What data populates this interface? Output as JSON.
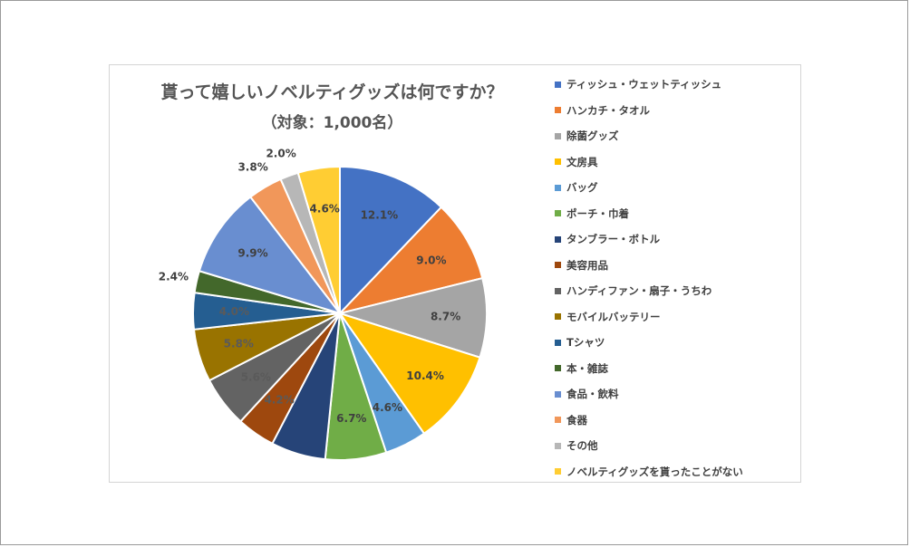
{
  "chart_data": {
    "type": "pie",
    "title": "貰って嬉しいノベルティグッズは何ですか？",
    "subtitle": "（対象：1,000名）",
    "legend_position": "right",
    "slices": [
      {
        "label": "ティッシュ・ウェットティッシュ",
        "value": 12.1,
        "value_label": "12.1%",
        "color": "#4472C4"
      },
      {
        "label": "ハンカチ・タオル",
        "value": 9.0,
        "value_label": "9.0%",
        "color": "#ED7D31"
      },
      {
        "label": "除菌グッズ",
        "value": 8.7,
        "value_label": "8.7%",
        "color": "#A5A5A5"
      },
      {
        "label": "文房具",
        "value": 10.4,
        "value_label": "10.4%",
        "color": "#FFC000"
      },
      {
        "label": "バッグ",
        "value": 4.6,
        "value_label": "4.6%",
        "color": "#5B9BD5"
      },
      {
        "label": "ポーチ・巾着",
        "value": 6.7,
        "value_label": "6.7%",
        "color": "#70AD47"
      },
      {
        "label": "タンブラー・ボトル",
        "value": 6.0,
        "value_label": "",
        "color": "#264478"
      },
      {
        "label": "美容用品",
        "value": 4.2,
        "value_label": "4.2%",
        "color": "#9E480E"
      },
      {
        "label": "ハンディファン・扇子・うちわ",
        "value": 5.6,
        "value_label": "5.6%",
        "color": "#636363"
      },
      {
        "label": "モバイルバッテリー",
        "value": 5.8,
        "value_label": "5.8%",
        "color": "#997300"
      },
      {
        "label": "Tシャツ",
        "value": 4.0,
        "value_label": "4.0%",
        "color": "#255E91"
      },
      {
        "label": "本・雑誌",
        "value": 2.4,
        "value_label": "2.4%",
        "color": "#43682B"
      },
      {
        "label": "食品・飲料",
        "value": 9.9,
        "value_label": "9.9%",
        "color": "#698ED0"
      },
      {
        "label": "食器",
        "value": 3.8,
        "value_label": "3.8%",
        "color": "#F1975A"
      },
      {
        "label": "その他",
        "value": 2.0,
        "value_label": "2.0%",
        "color": "#B7B7B7"
      },
      {
        "label": "ノベルティグッズを貰ったことがない",
        "value": 4.6,
        "value_label": "4.6%",
        "color": "#FFCD33"
      }
    ]
  }
}
